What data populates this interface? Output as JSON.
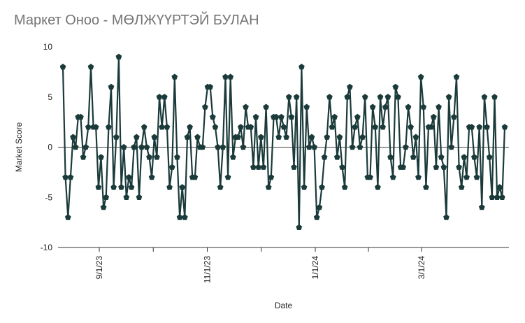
{
  "chart_data": {
    "type": "line",
    "title": "Маркет Оноо - МӨЛЖҮҮРТЭЙ БУЛАН",
    "xlabel": "Date",
    "ylabel": "Market Score",
    "ylim": [
      -10,
      10
    ],
    "yticks": [
      10,
      5,
      0,
      -5,
      -10
    ],
    "xticks": [
      {
        "date": "2023-09-01",
        "label": "9/1/23"
      },
      {
        "date": "2023-11-01",
        "label": "11/1/23"
      },
      {
        "date": "2024-01-01",
        "label": "1/1/24"
      },
      {
        "date": "2024-03-01",
        "label": "3/1/24"
      }
    ],
    "grid": "zero line only",
    "color": "#1b3a3a",
    "marker": "pentagon",
    "series": [
      {
        "values": [
          8,
          -3,
          -7,
          -3,
          1,
          0,
          3,
          3,
          -1,
          0,
          2,
          8,
          2,
          2,
          -4,
          -1,
          -6,
          -5,
          2,
          6,
          -4,
          1,
          9,
          -4,
          0,
          -5,
          -3,
          -4,
          0,
          1,
          -5,
          0,
          2,
          0,
          -1,
          -3,
          1,
          -1,
          5,
          2,
          5,
          2,
          -4,
          -2,
          7,
          -1,
          -7,
          -4,
          -7,
          1,
          2,
          -3,
          -3,
          1,
          0,
          0,
          4,
          6,
          6,
          3,
          2,
          0,
          -4,
          0,
          7,
          -3,
          7,
          -1,
          1,
          1,
          2,
          0,
          4,
          2,
          2,
          -2,
          3,
          -2,
          1,
          -2,
          4,
          -4,
          -3,
          3,
          3,
          1,
          3,
          2,
          1,
          5,
          3,
          -2,
          5,
          -8,
          8,
          -4,
          4,
          0,
          1,
          0,
          -7,
          -6,
          -4,
          -1,
          1,
          5,
          2,
          3,
          -1,
          1,
          -2,
          -4,
          5,
          6,
          0,
          2,
          3,
          0,
          1,
          5,
          -3,
          -3,
          4,
          2,
          -4,
          5,
          2,
          4,
          5,
          -1,
          -3,
          6,
          5,
          -2,
          -2,
          0,
          4,
          2,
          -1,
          1,
          -3,
          7,
          4,
          -4,
          2,
          2,
          3,
          -2,
          4,
          -1,
          -2,
          -7,
          5,
          0,
          3,
          7,
          -2,
          -4,
          -1,
          -3,
          2,
          2,
          -1,
          -3,
          2,
          -6,
          5,
          2,
          -1,
          -5,
          5,
          -5,
          -4,
          -5,
          2
        ]
      }
    ]
  }
}
